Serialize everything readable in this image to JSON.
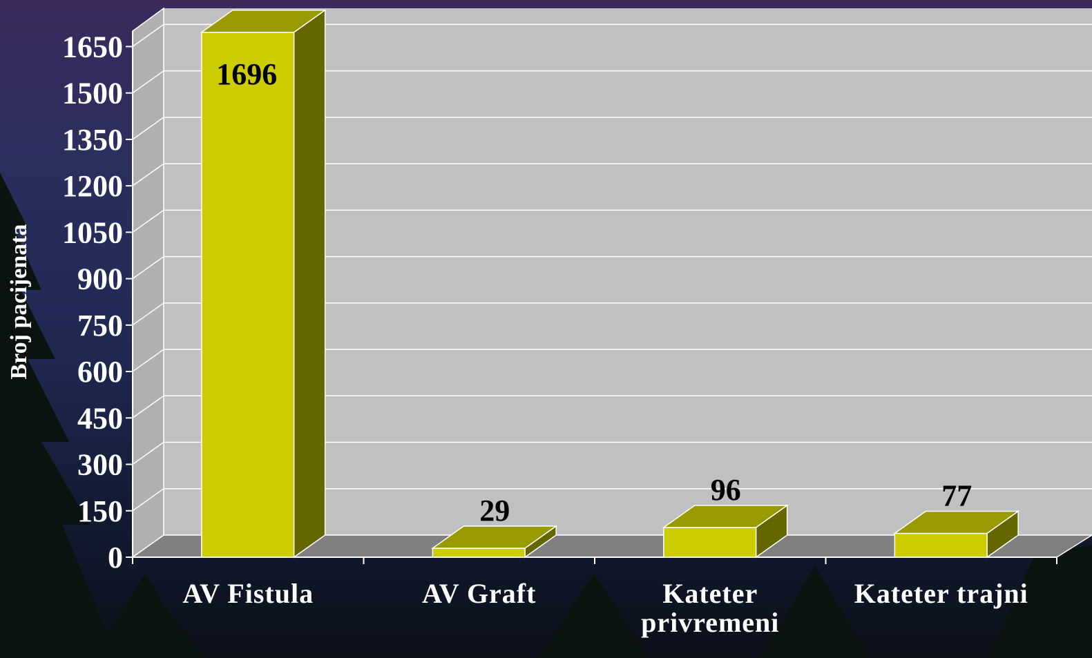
{
  "chart_data": {
    "type": "bar3d",
    "y_label": "Broj pacijenata",
    "categories": [
      "AV Fistula",
      "AV Graft",
      "Kateter privremeni",
      "Kateter trajni"
    ],
    "values": [
      1696,
      29,
      96,
      77
    ],
    "ylim": [
      0,
      1700
    ],
    "yticks": [
      0,
      150,
      300,
      450,
      600,
      750,
      900,
      1050,
      1200,
      1350,
      1500,
      1650
    ],
    "grid": true,
    "color": "#cccc00"
  }
}
